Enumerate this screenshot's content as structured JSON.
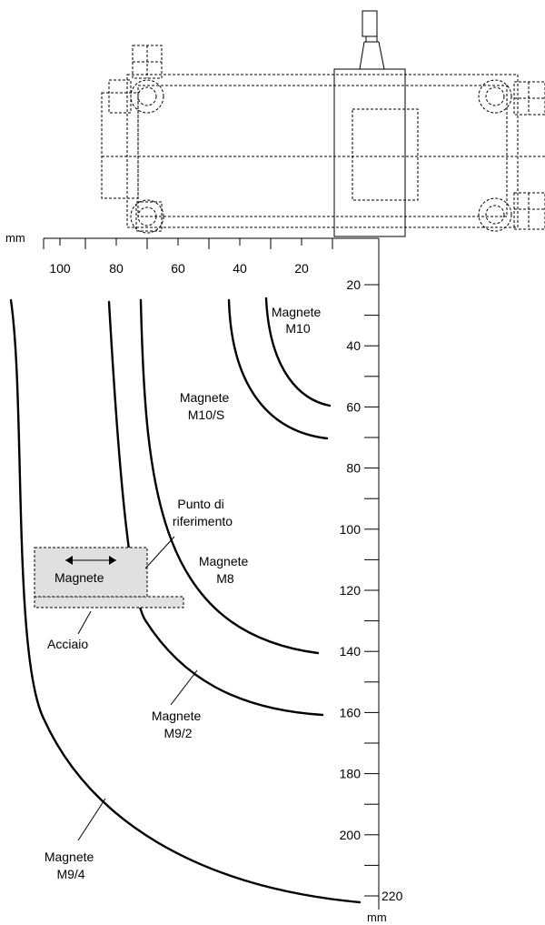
{
  "units": {
    "left": "mm",
    "bottom": "mm"
  },
  "x_ticks": [
    "100",
    "80",
    "60",
    "40",
    "20"
  ],
  "y_ticks": [
    "20",
    "40",
    "60",
    "80",
    "100",
    "120",
    "140",
    "160",
    "180",
    "200",
    "220"
  ],
  "labels": {
    "m10": {
      "line1": "Magnete",
      "line2": "M10"
    },
    "m10s": {
      "line1": "Magnete",
      "line2": "M10/S"
    },
    "m8": {
      "line1": "Magnete",
      "line2": "M8"
    },
    "m9_2": {
      "line1": "Magnete",
      "line2": "M9/2"
    },
    "m9_4": {
      "line1": "Magnete",
      "line2": "M9/4"
    },
    "reference": {
      "line1": "Punto di",
      "line2": "riferimento"
    },
    "magnet_box": "Magnete",
    "steel": "Acciaio"
  },
  "colors": {
    "line": "#000000",
    "magnet_fill": "#e0e0e0",
    "background": "#ffffff"
  }
}
